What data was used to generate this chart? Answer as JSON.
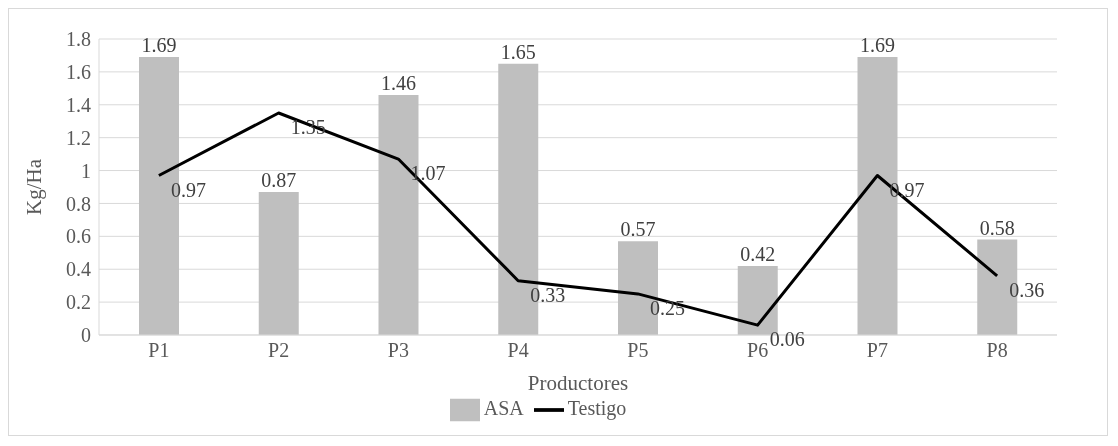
{
  "chart_data": {
    "type": "bar",
    "xlabel": "Productores",
    "ylabel": "Kg/Ha",
    "categories": [
      "P1",
      "P2",
      "P3",
      "P4",
      "P5",
      "P6",
      "P7",
      "P8"
    ],
    "series": [
      {
        "name": "ASA",
        "color": "#bfbfbf",
        "values": [
          1.69,
          0.87,
          1.46,
          1.65,
          0.57,
          0.42,
          1.69,
          0.58
        ]
      },
      {
        "name": "Testigo",
        "type": "line",
        "color": "#000000",
        "values": [
          0.97,
          1.35,
          1.07,
          0.33,
          0.25,
          0.06,
          0.97,
          0.36
        ]
      }
    ],
    "ylim": [
      0,
      1.8
    ],
    "yticks": [
      0,
      0.2,
      0.4,
      0.6,
      0.8,
      1,
      1.2,
      1.4,
      1.6,
      1.8
    ],
    "grid": "y",
    "legend": "bottom",
    "data_labels": true,
    "marker": "none",
    "line_style": "solid"
  }
}
